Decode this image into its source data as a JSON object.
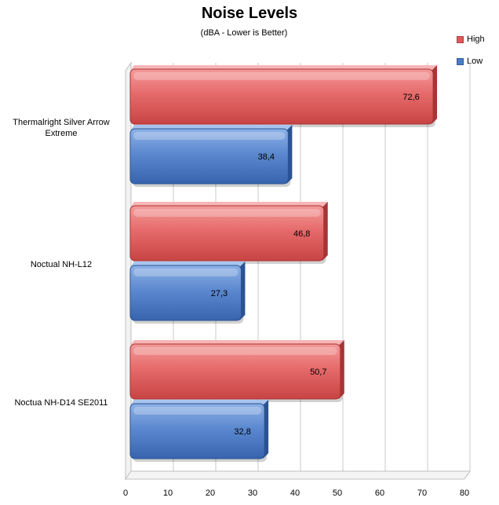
{
  "chart_data": {
    "type": "bar",
    "orientation": "horizontal",
    "title": "Noise Levels",
    "subtitle": "(dBA - Lower is Better)",
    "categories": [
      [
        "Thermalright Silver Arrow",
        "Extreme"
      ],
      [
        "Noctual NH-L12"
      ],
      [
        "Noctua NH-D14 SE2011"
      ]
    ],
    "series": [
      {
        "name": "High",
        "color": "#e05a5a",
        "values": [
          72.6,
          46.8,
          50.7
        ],
        "labels": [
          "72,6",
          "46,8",
          "50,7"
        ]
      },
      {
        "name": "Low",
        "color": "#4a7cc7",
        "values": [
          38.4,
          27.3,
          32.8
        ],
        "labels": [
          "38,4",
          "27,3",
          "32,8"
        ]
      }
    ],
    "xlim": [
      0,
      80
    ],
    "ticks": [
      0,
      10,
      20,
      30,
      40,
      50,
      60,
      70,
      80
    ],
    "tick_labels": [
      "0",
      "10",
      "20",
      "30",
      "40",
      "50",
      "60",
      "70",
      "80"
    ],
    "grid": true,
    "legend_position": "top-right"
  }
}
